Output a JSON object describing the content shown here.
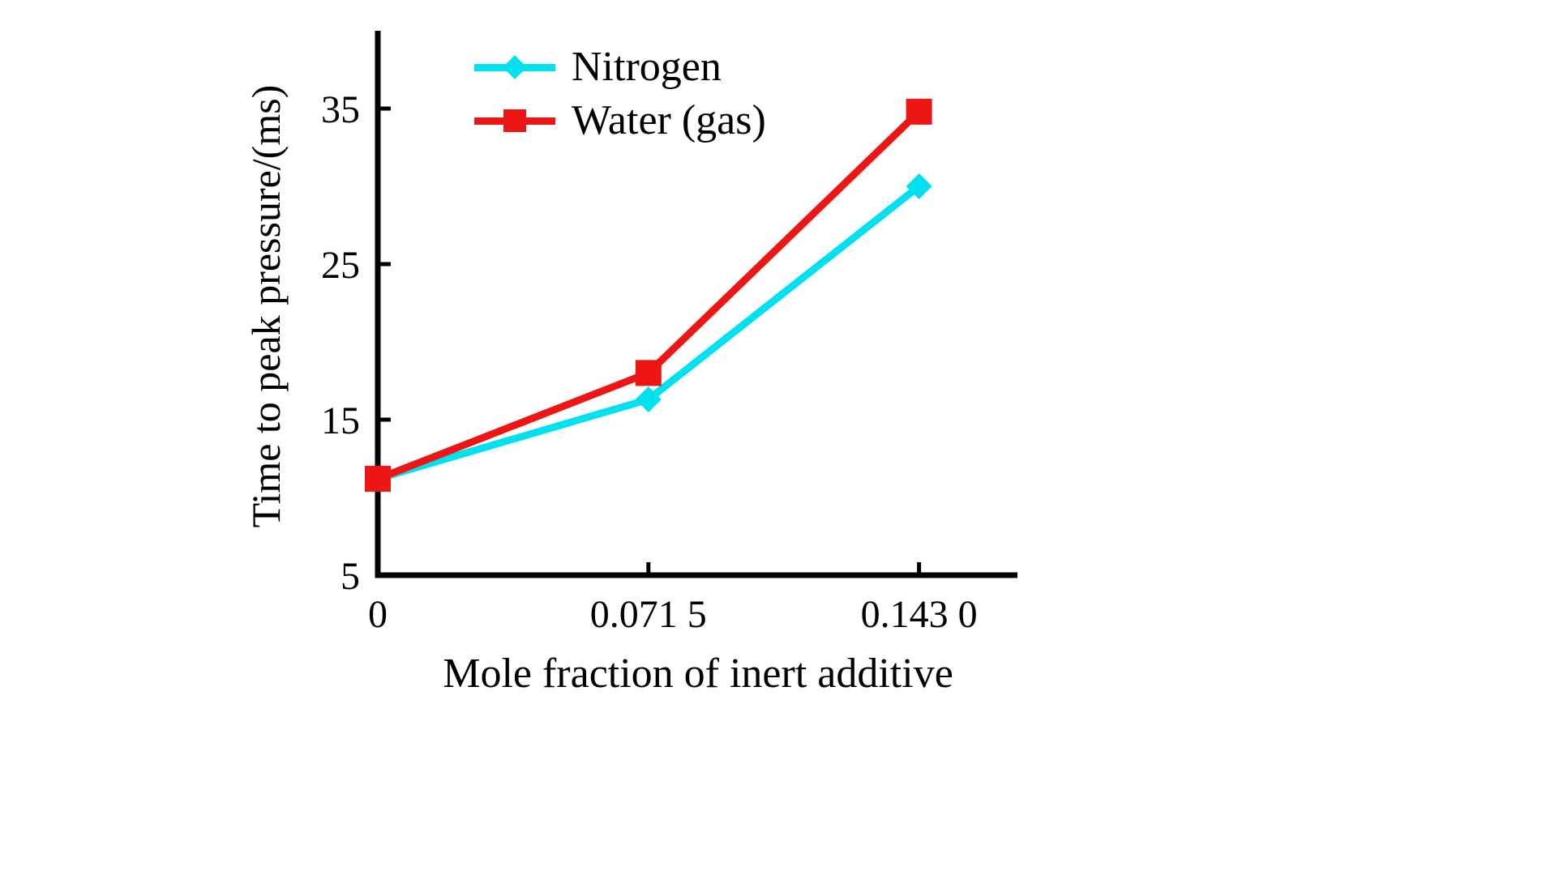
{
  "chart_data": {
    "type": "line",
    "title": "",
    "xlabel": "Mole fraction of inert additive",
    "ylabel": "Time to peak pressure/(ms)",
    "x": [
      0,
      0.0715,
      0.143
    ],
    "x_tick_labels": [
      "0",
      "0.071 5",
      "0.143 0"
    ],
    "y_ticks": [
      5,
      15,
      25,
      35
    ],
    "xlim": [
      0,
      0.169
    ],
    "ylim": [
      5,
      40
    ],
    "grid": false,
    "legend_position": "top-left-inside",
    "series": [
      {
        "name": "Nitrogen",
        "color": "#00e1f0",
        "marker": "diamond",
        "values": [
          11.2,
          16.3,
          30.0
        ]
      },
      {
        "name": "Water (gas)",
        "color": "#ee1515",
        "marker": "square",
        "values": [
          11.2,
          18.0,
          34.8
        ]
      }
    ]
  }
}
